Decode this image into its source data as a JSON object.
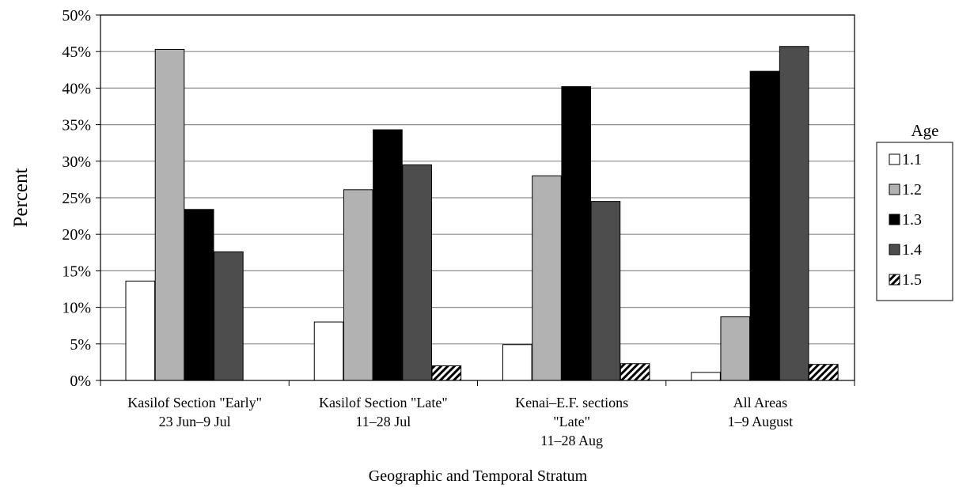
{
  "chart_data": {
    "type": "bar",
    "title": "",
    "xlabel": "Geographic and Temporal Stratum",
    "ylabel": "Percent",
    "ylim": [
      0,
      50
    ],
    "yticks": [
      "0%",
      "5%",
      "10%",
      "15%",
      "20%",
      "25%",
      "30%",
      "35%",
      "40%",
      "45%",
      "50%"
    ],
    "grid": true,
    "legend": {
      "title": "Age",
      "placement": "right"
    },
    "categories": [
      [
        "Kasilof Section \"Early\"",
        "23 Jun–9 Jul"
      ],
      [
        "Kasilof Section \"Late\"",
        "11–28 Jul"
      ],
      [
        "Kenai–E.F. sections",
        "\"Late\"",
        "11–28 Aug"
      ],
      [
        "All Areas",
        "1–9 August"
      ]
    ],
    "series": [
      {
        "name": "1.1",
        "fill": "#ffffff",
        "values": [
          13.6,
          8.0,
          4.9,
          1.1
        ]
      },
      {
        "name": "1.2",
        "fill": "#b2b2b2",
        "values": [
          45.3,
          26.1,
          28.0,
          8.7
        ]
      },
      {
        "name": "1.3",
        "fill": "#000000",
        "values": [
          23.4,
          34.3,
          40.2,
          42.3
        ]
      },
      {
        "name": "1.4",
        "fill": "#4d4d4d",
        "values": [
          17.6,
          29.5,
          24.5,
          45.7
        ]
      },
      {
        "name": "1.5",
        "fill": "hatch",
        "values": [
          0,
          2.0,
          2.3,
          2.2
        ]
      }
    ]
  }
}
